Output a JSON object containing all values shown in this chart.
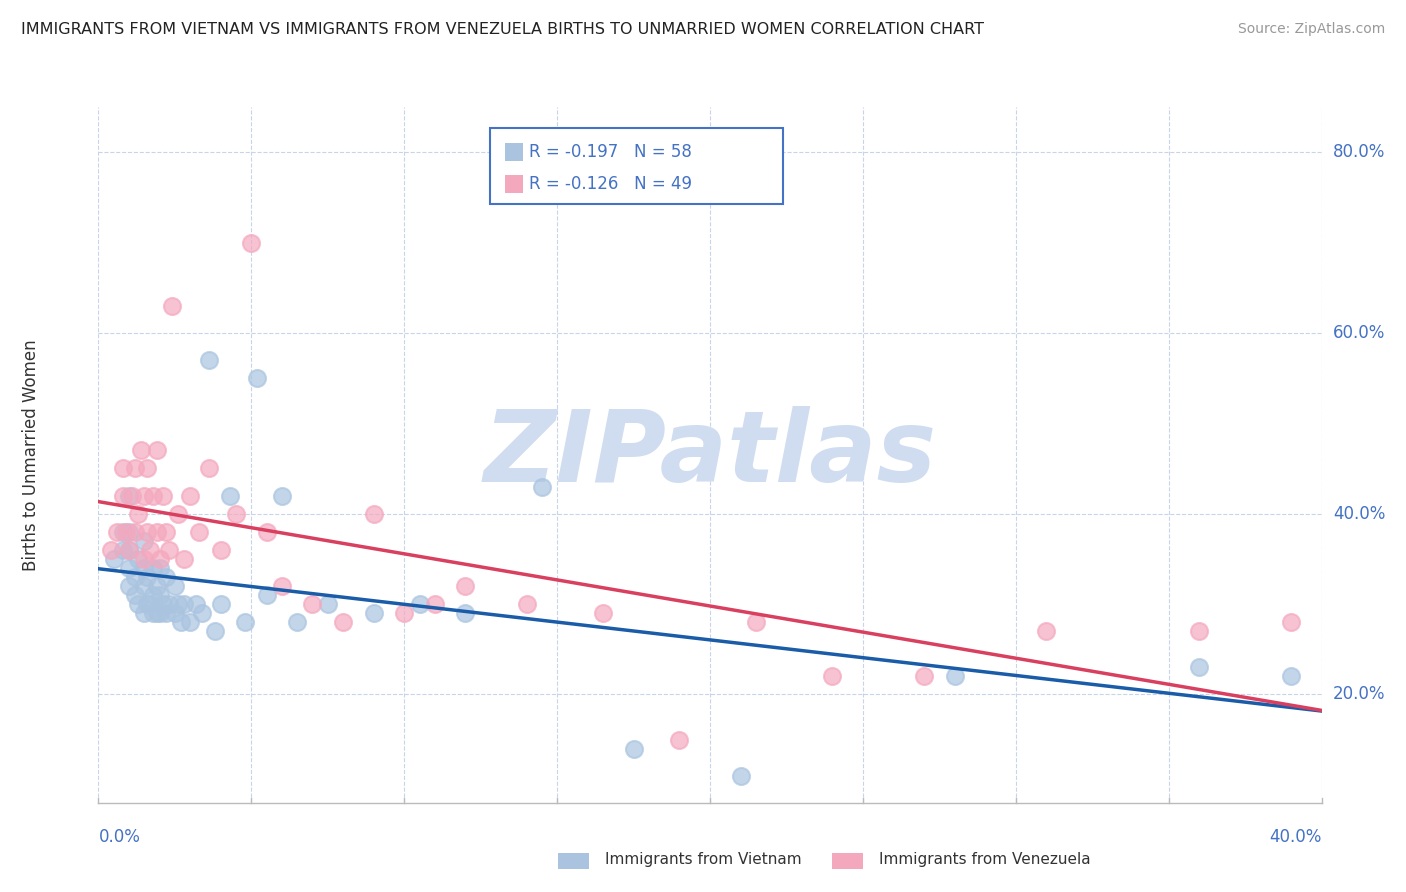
{
  "title": "IMMIGRANTS FROM VIETNAM VS IMMIGRANTS FROM VENEZUELA BIRTHS TO UNMARRIED WOMEN CORRELATION CHART",
  "source": "Source: ZipAtlas.com",
  "ylabel": "Births to Unmarried Women",
  "xlim": [
    0.0,
    0.4
  ],
  "ylim": [
    0.08,
    0.85
  ],
  "vietnam_R": -0.197,
  "vietnam_N": 58,
  "venezuela_R": -0.126,
  "venezuela_N": 49,
  "vietnam_color": "#aac4e0",
  "venezuela_color": "#f4a8be",
  "vietnam_line_color": "#1a5ca8",
  "venezuela_line_color": "#d94060",
  "background_color": "#ffffff",
  "grid_color": "#c8d4e8",
  "watermark_color": "#d0ddf0",
  "ytick_labels": [
    "20.0%",
    "40.0%",
    "60.0%",
    "80.0%"
  ],
  "ytick_vals": [
    0.2,
    0.4,
    0.6,
    0.8
  ],
  "xtick_labels": [
    "0.0%",
    "40.0%"
  ],
  "xtick_vals": [
    0.0,
    0.4
  ],
  "vietnam_x": [
    0.005,
    0.008,
    0.008,
    0.01,
    0.01,
    0.01,
    0.01,
    0.01,
    0.012,
    0.012,
    0.013,
    0.013,
    0.015,
    0.015,
    0.015,
    0.015,
    0.016,
    0.016,
    0.017,
    0.018,
    0.018,
    0.018,
    0.019,
    0.019,
    0.02,
    0.02,
    0.02,
    0.021,
    0.022,
    0.022,
    0.023,
    0.025,
    0.025,
    0.026,
    0.027,
    0.028,
    0.03,
    0.032,
    0.034,
    0.036,
    0.038,
    0.04,
    0.043,
    0.048,
    0.052,
    0.055,
    0.06,
    0.065,
    0.075,
    0.09,
    0.105,
    0.12,
    0.145,
    0.175,
    0.21,
    0.28,
    0.36,
    0.39
  ],
  "vietnam_y": [
    0.35,
    0.36,
    0.38,
    0.32,
    0.34,
    0.36,
    0.38,
    0.42,
    0.31,
    0.33,
    0.3,
    0.35,
    0.29,
    0.32,
    0.34,
    0.37,
    0.3,
    0.33,
    0.3,
    0.29,
    0.31,
    0.34,
    0.29,
    0.32,
    0.29,
    0.31,
    0.34,
    0.3,
    0.29,
    0.33,
    0.3,
    0.29,
    0.32,
    0.3,
    0.28,
    0.3,
    0.28,
    0.3,
    0.29,
    0.57,
    0.27,
    0.3,
    0.42,
    0.28,
    0.55,
    0.31,
    0.42,
    0.28,
    0.3,
    0.29,
    0.3,
    0.29,
    0.43,
    0.14,
    0.11,
    0.22,
    0.23,
    0.22
  ],
  "venezuela_x": [
    0.004,
    0.006,
    0.008,
    0.008,
    0.009,
    0.01,
    0.011,
    0.012,
    0.012,
    0.013,
    0.014,
    0.015,
    0.015,
    0.016,
    0.016,
    0.017,
    0.018,
    0.019,
    0.019,
    0.02,
    0.021,
    0.022,
    0.023,
    0.024,
    0.026,
    0.028,
    0.03,
    0.033,
    0.036,
    0.04,
    0.045,
    0.05,
    0.055,
    0.06,
    0.07,
    0.08,
    0.09,
    0.1,
    0.11,
    0.12,
    0.14,
    0.165,
    0.19,
    0.215,
    0.24,
    0.27,
    0.31,
    0.36,
    0.39
  ],
  "venezuela_y": [
    0.36,
    0.38,
    0.42,
    0.45,
    0.38,
    0.36,
    0.42,
    0.38,
    0.45,
    0.4,
    0.47,
    0.35,
    0.42,
    0.38,
    0.45,
    0.36,
    0.42,
    0.38,
    0.47,
    0.35,
    0.42,
    0.38,
    0.36,
    0.63,
    0.4,
    0.35,
    0.42,
    0.38,
    0.45,
    0.36,
    0.4,
    0.7,
    0.38,
    0.32,
    0.3,
    0.28,
    0.4,
    0.29,
    0.3,
    0.32,
    0.3,
    0.29,
    0.15,
    0.28,
    0.22,
    0.22,
    0.27,
    0.27,
    0.28
  ]
}
